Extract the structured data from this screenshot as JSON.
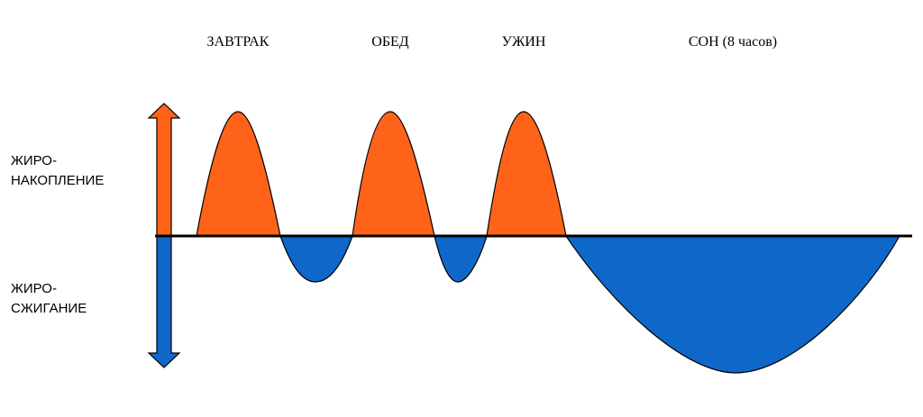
{
  "colors": {
    "storage": "#ff6319",
    "burning": "#0f68c9",
    "baseline": "#000000",
    "outline": "#000000",
    "background": "#ffffff"
  },
  "periods": {
    "breakfast": "ЗАВТРАК",
    "lunch": "ОБЕД",
    "dinner": "УЖИН",
    "sleep": "СОН (8 часов)"
  },
  "axis": {
    "storage": [
      "ЖИРО-",
      "НАКОПЛЕНИЕ"
    ],
    "burning": [
      "ЖИРО-",
      "СЖИГАНИЕ"
    ]
  },
  "icons": {
    "up": "arrow-up-icon",
    "down": "arrow-down-icon"
  }
}
